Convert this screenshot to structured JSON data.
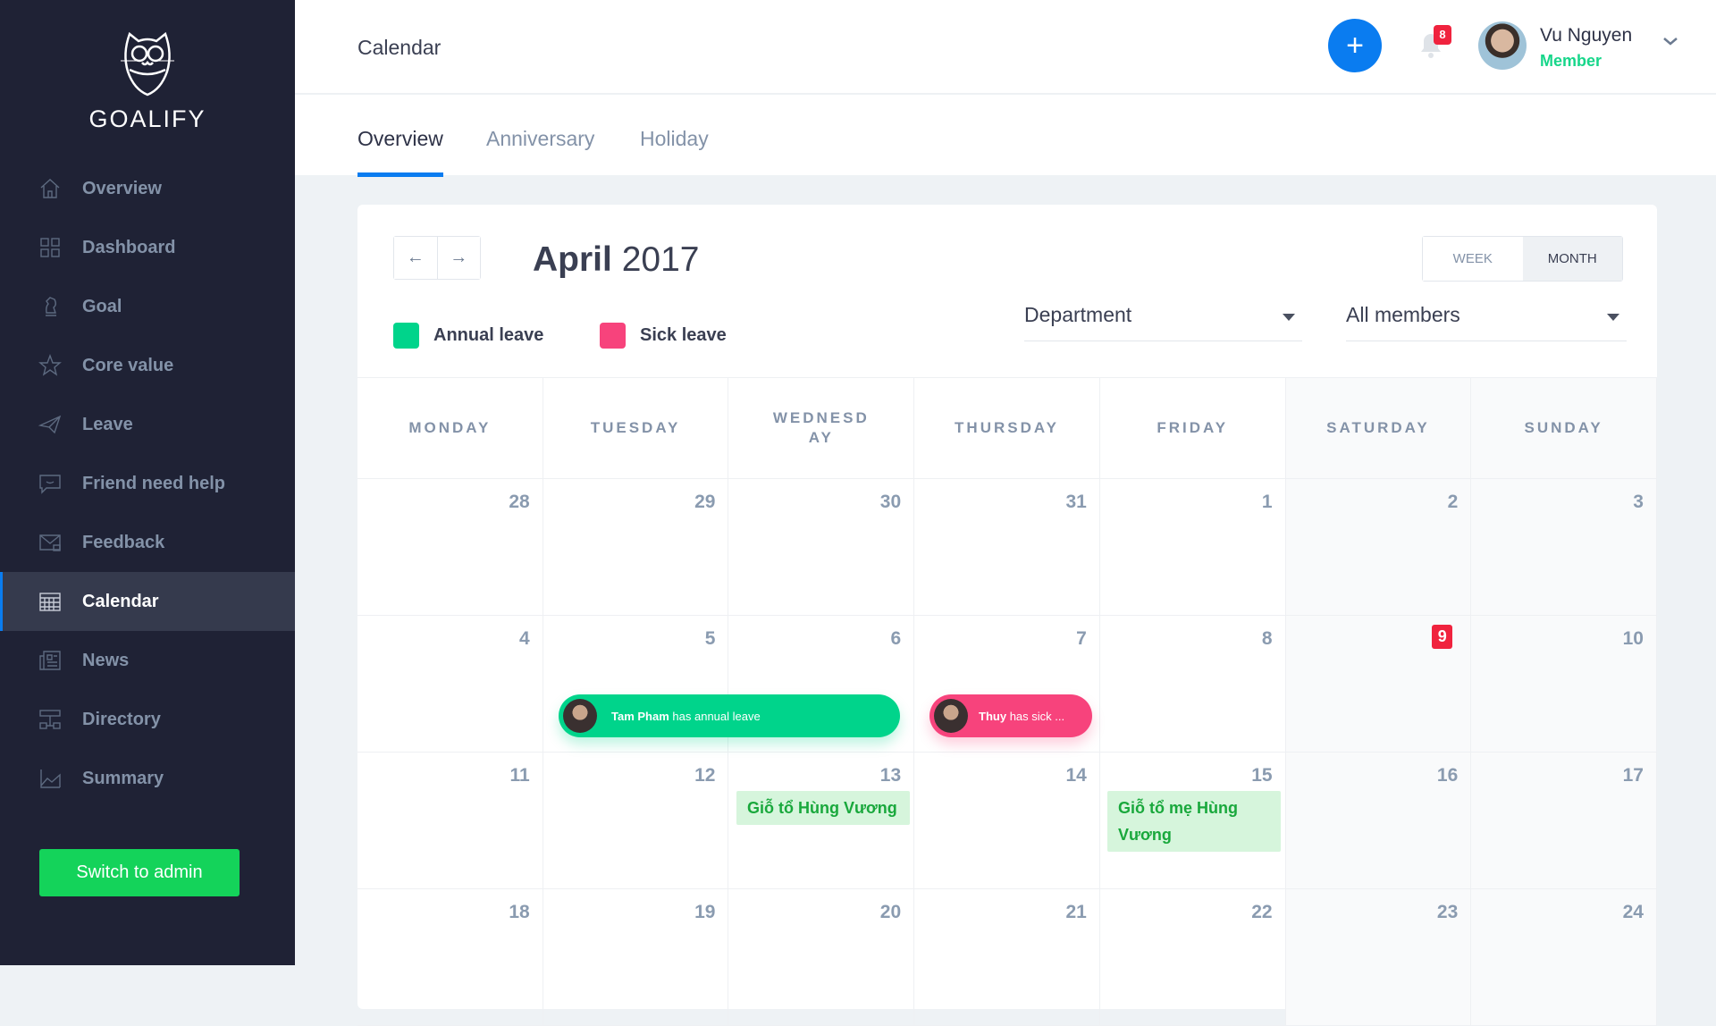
{
  "brand": {
    "name": "GOALIFY"
  },
  "sidebar": {
    "items": [
      {
        "label": "Overview",
        "icon": "home-icon"
      },
      {
        "label": "Dashboard",
        "icon": "grid-icon"
      },
      {
        "label": "Goal",
        "icon": "chess-knight-icon"
      },
      {
        "label": "Core value",
        "icon": "star-icon"
      },
      {
        "label": "Leave",
        "icon": "paper-plane-icon"
      },
      {
        "label": "Friend need help",
        "icon": "chat-icon"
      },
      {
        "label": "Feedback",
        "icon": "envelope-icon"
      },
      {
        "label": "Calendar",
        "icon": "calendar-icon",
        "active": true
      },
      {
        "label": "News",
        "icon": "newspaper-icon"
      },
      {
        "label": "Directory",
        "icon": "org-chart-icon"
      },
      {
        "label": "Summary",
        "icon": "chart-icon"
      }
    ],
    "switch_label": "Switch to admin"
  },
  "header": {
    "title": "Calendar",
    "notifications": "8",
    "user": {
      "name": "Vu Nguyen",
      "role": "Member"
    }
  },
  "tabs": [
    {
      "label": "Overview",
      "active": true
    },
    {
      "label": "Anniversary"
    },
    {
      "label": "Holiday"
    }
  ],
  "calendar": {
    "month": "April",
    "year": "2017",
    "view_options": [
      "WEEK",
      "MONTH"
    ],
    "view_selected": "MONTH",
    "legend": [
      {
        "label": "Annual leave",
        "color": "#00d48b"
      },
      {
        "label": "Sick leave",
        "color": "#f7437c"
      }
    ],
    "filters": {
      "department": "Department",
      "members": "All members"
    },
    "weekdays": [
      "MONDAY",
      "TUESDAY",
      "WEDNESDAY",
      "THURSDAY",
      "FRIDAY",
      "SATURDAY",
      "SUNDAY"
    ],
    "weeks": [
      [
        "28",
        "29",
        "30",
        "31",
        "1",
        "2",
        "3"
      ],
      [
        "4",
        "5",
        "6",
        "7",
        "8",
        "9",
        "10"
      ],
      [
        "11",
        "12",
        "13",
        "14",
        "15",
        "16",
        "17"
      ],
      [
        "18",
        "19",
        "20",
        "21",
        "22",
        "23",
        "24"
      ]
    ],
    "today": "9",
    "events": [
      {
        "name": "Tam Pham",
        "text": "has annual leave",
        "type": "annual"
      },
      {
        "name": "Thuy",
        "text": "has sick ...",
        "type": "sick"
      }
    ],
    "holidays": [
      {
        "label": "Giỗ tổ Hùng Vương"
      },
      {
        "label": "Giỗ tổ mẹ Hùng Vương"
      }
    ]
  }
}
